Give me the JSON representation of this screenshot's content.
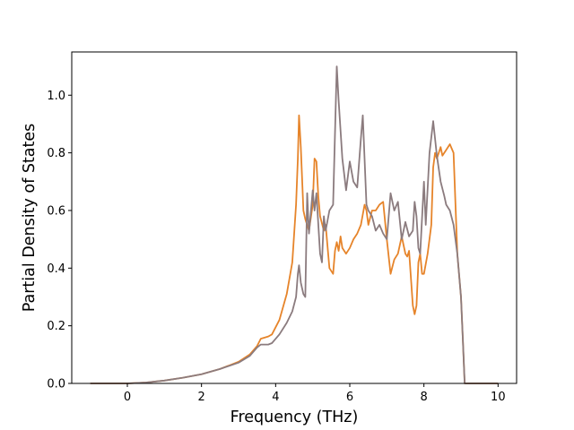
{
  "chart_data": {
    "type": "line",
    "title": "",
    "xlabel": "Frequency (THz)",
    "ylabel": "Partial Density of States",
    "xlim": [
      -1.5,
      10.5
    ],
    "ylim": [
      0,
      1.15
    ],
    "xticks": [
      0,
      2,
      4,
      6,
      8,
      10
    ],
    "xtick_labels": [
      "0",
      "2",
      "4",
      "6",
      "8",
      "10"
    ],
    "yticks": [
      0.0,
      0.2,
      0.4,
      0.6,
      0.8,
      1.0
    ],
    "ytick_labels": [
      "0.0",
      "0.2",
      "0.4",
      "0.6",
      "0.8",
      "1.0"
    ],
    "grid": false,
    "legend": "none",
    "series": [
      {
        "color": "#e6842a",
        "points": [
          [
            -1.0,
            0.0
          ],
          [
            0.0,
            0.0
          ],
          [
            0.5,
            0.003
          ],
          [
            1.0,
            0.01
          ],
          [
            1.5,
            0.02
          ],
          [
            2.0,
            0.032
          ],
          [
            2.5,
            0.05
          ],
          [
            3.0,
            0.075
          ],
          [
            3.3,
            0.1
          ],
          [
            3.5,
            0.13
          ],
          [
            3.6,
            0.155
          ],
          [
            3.8,
            0.163
          ],
          [
            3.9,
            0.17
          ],
          [
            4.1,
            0.22
          ],
          [
            4.3,
            0.31
          ],
          [
            4.45,
            0.42
          ],
          [
            4.55,
            0.62
          ],
          [
            4.6,
            0.78
          ],
          [
            4.63,
            0.93
          ],
          [
            4.68,
            0.82
          ],
          [
            4.75,
            0.6
          ],
          [
            4.8,
            0.57
          ],
          [
            4.9,
            0.53
          ],
          [
            5.0,
            0.62
          ],
          [
            5.05,
            0.78
          ],
          [
            5.1,
            0.77
          ],
          [
            5.15,
            0.65
          ],
          [
            5.2,
            0.58
          ],
          [
            5.3,
            0.53
          ],
          [
            5.35,
            0.55
          ],
          [
            5.45,
            0.4
          ],
          [
            5.55,
            0.38
          ],
          [
            5.6,
            0.46
          ],
          [
            5.65,
            0.49
          ],
          [
            5.7,
            0.46
          ],
          [
            5.75,
            0.51
          ],
          [
            5.8,
            0.47
          ],
          [
            5.9,
            0.45
          ],
          [
            6.0,
            0.47
          ],
          [
            6.1,
            0.5
          ],
          [
            6.2,
            0.52
          ],
          [
            6.3,
            0.55
          ],
          [
            6.4,
            0.62
          ],
          [
            6.45,
            0.6
          ],
          [
            6.5,
            0.55
          ],
          [
            6.6,
            0.6
          ],
          [
            6.7,
            0.6
          ],
          [
            6.8,
            0.62
          ],
          [
            6.9,
            0.63
          ],
          [
            7.0,
            0.5
          ],
          [
            7.1,
            0.38
          ],
          [
            7.2,
            0.43
          ],
          [
            7.3,
            0.45
          ],
          [
            7.4,
            0.51
          ],
          [
            7.5,
            0.45
          ],
          [
            7.55,
            0.44
          ],
          [
            7.6,
            0.46
          ],
          [
            7.7,
            0.27
          ],
          [
            7.75,
            0.24
          ],
          [
            7.8,
            0.27
          ],
          [
            7.85,
            0.42
          ],
          [
            7.9,
            0.45
          ],
          [
            7.95,
            0.38
          ],
          [
            8.0,
            0.38
          ],
          [
            8.1,
            0.45
          ],
          [
            8.2,
            0.55
          ],
          [
            8.25,
            0.75
          ],
          [
            8.3,
            0.8
          ],
          [
            8.35,
            0.78
          ],
          [
            8.45,
            0.82
          ],
          [
            8.5,
            0.79
          ],
          [
            8.6,
            0.81
          ],
          [
            8.7,
            0.83
          ],
          [
            8.8,
            0.8
          ],
          [
            8.9,
            0.45
          ],
          [
            9.0,
            0.3
          ],
          [
            9.05,
            0.15
          ],
          [
            9.1,
            0.0
          ],
          [
            10.0,
            0.0
          ]
        ]
      },
      {
        "color": "#8b7b7e",
        "points": [
          [
            -1.0,
            0.0
          ],
          [
            0.0,
            0.0
          ],
          [
            0.5,
            0.003
          ],
          [
            1.0,
            0.01
          ],
          [
            1.5,
            0.02
          ],
          [
            2.0,
            0.032
          ],
          [
            2.5,
            0.05
          ],
          [
            3.0,
            0.072
          ],
          [
            3.3,
            0.095
          ],
          [
            3.5,
            0.125
          ],
          [
            3.6,
            0.135
          ],
          [
            3.8,
            0.135
          ],
          [
            3.9,
            0.14
          ],
          [
            4.1,
            0.17
          ],
          [
            4.3,
            0.21
          ],
          [
            4.45,
            0.25
          ],
          [
            4.55,
            0.3
          ],
          [
            4.6,
            0.38
          ],
          [
            4.63,
            0.41
          ],
          [
            4.68,
            0.35
          ],
          [
            4.75,
            0.31
          ],
          [
            4.8,
            0.3
          ],
          [
            4.85,
            0.66
          ],
          [
            4.9,
            0.52
          ],
          [
            5.0,
            0.67
          ],
          [
            5.05,
            0.6
          ],
          [
            5.1,
            0.66
          ],
          [
            5.2,
            0.45
          ],
          [
            5.25,
            0.42
          ],
          [
            5.3,
            0.58
          ],
          [
            5.35,
            0.53
          ],
          [
            5.45,
            0.6
          ],
          [
            5.55,
            0.62
          ],
          [
            5.65,
            1.1
          ],
          [
            5.7,
            0.98
          ],
          [
            5.8,
            0.78
          ],
          [
            5.9,
            0.67
          ],
          [
            6.0,
            0.77
          ],
          [
            6.1,
            0.7
          ],
          [
            6.2,
            0.68
          ],
          [
            6.3,
            0.85
          ],
          [
            6.35,
            0.93
          ],
          [
            6.45,
            0.62
          ],
          [
            6.5,
            0.6
          ],
          [
            6.6,
            0.58
          ],
          [
            6.7,
            0.53
          ],
          [
            6.8,
            0.55
          ],
          [
            6.9,
            0.52
          ],
          [
            7.0,
            0.5
          ],
          [
            7.1,
            0.66
          ],
          [
            7.2,
            0.6
          ],
          [
            7.3,
            0.63
          ],
          [
            7.4,
            0.5
          ],
          [
            7.5,
            0.56
          ],
          [
            7.6,
            0.51
          ],
          [
            7.7,
            0.53
          ],
          [
            7.75,
            0.63
          ],
          [
            7.8,
            0.58
          ],
          [
            7.85,
            0.47
          ],
          [
            7.9,
            0.45
          ],
          [
            8.0,
            0.7
          ],
          [
            8.05,
            0.55
          ],
          [
            8.15,
            0.8
          ],
          [
            8.25,
            0.91
          ],
          [
            8.35,
            0.79
          ],
          [
            8.45,
            0.7
          ],
          [
            8.55,
            0.65
          ],
          [
            8.6,
            0.62
          ],
          [
            8.7,
            0.6
          ],
          [
            8.8,
            0.55
          ],
          [
            8.9,
            0.45
          ],
          [
            9.0,
            0.3
          ],
          [
            9.05,
            0.15
          ],
          [
            9.1,
            0.0
          ],
          [
            10.0,
            0.0
          ]
        ]
      }
    ]
  }
}
